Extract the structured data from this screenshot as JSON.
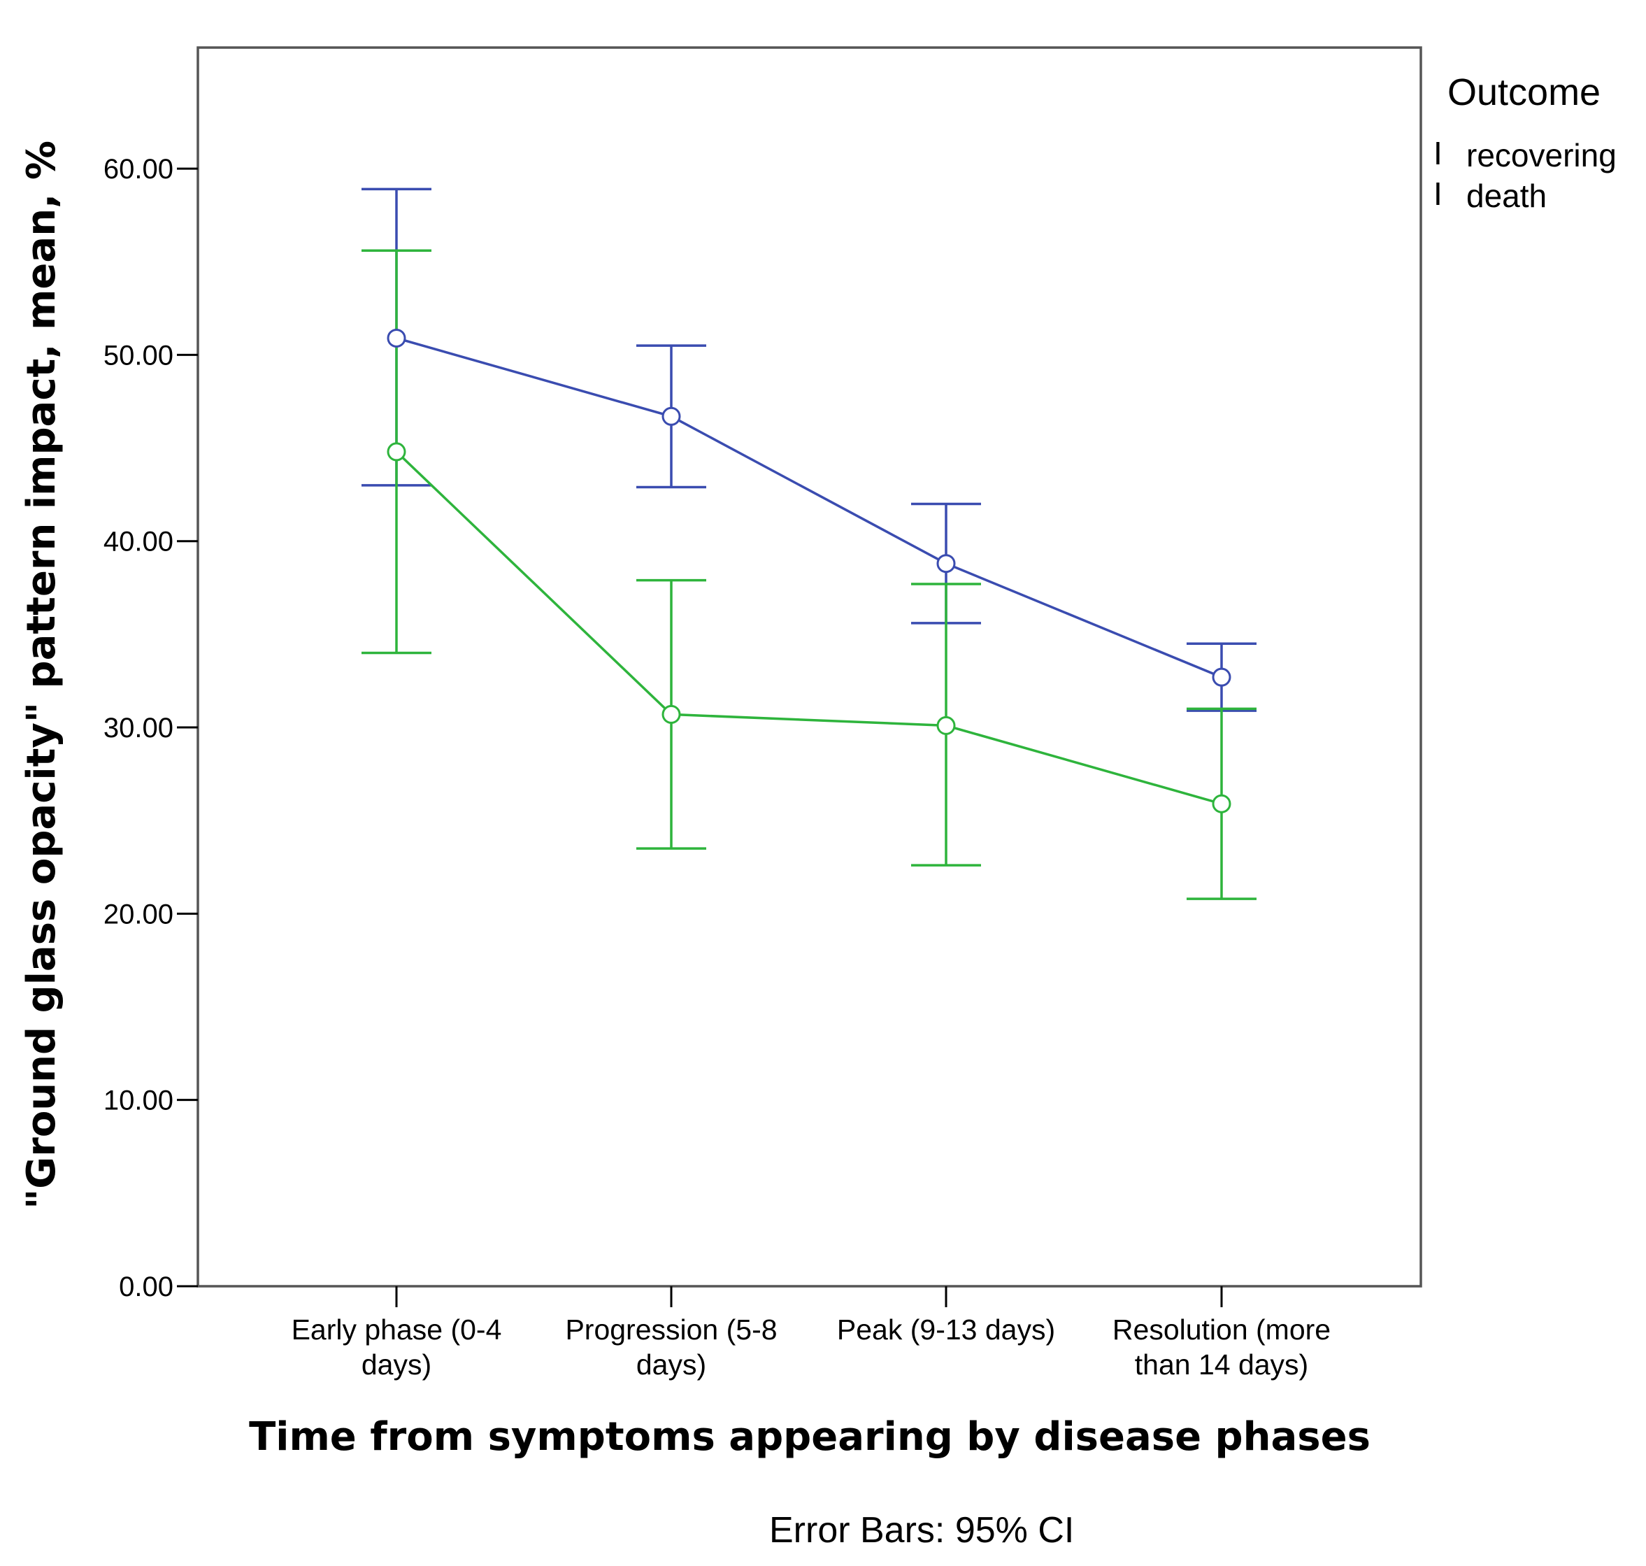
{
  "chart_data": {
    "type": "line",
    "xlabel": "Time from symptoms appearing by disease phases",
    "ylabel": "\"Ground glass opacity\" pattern impact, mean, %",
    "ylim": [
      0,
      66.5
    ],
    "yticks": [
      0,
      10,
      20,
      30,
      40,
      50,
      60
    ],
    "ytick_labels": [
      "0.00",
      "10.00",
      "20.00",
      "30.00",
      "40.00",
      "50.00",
      "60.00"
    ],
    "categories": [
      [
        "Early phase (0-4",
        "days)"
      ],
      [
        "Progression (5-8",
        "days)"
      ],
      [
        "Peak (9-13 days)"
      ],
      [
        "Resolution (more",
        "than 14 days)"
      ]
    ],
    "series": [
      {
        "name": "recovering",
        "color": "#3a4cb0",
        "values": [
          50.9,
          46.7,
          38.8,
          32.7
        ],
        "ci_low": [
          43.0,
          42.9,
          35.6,
          30.9
        ],
        "ci_high": [
          58.9,
          50.5,
          42.0,
          34.5
        ]
      },
      {
        "name": "death",
        "color": "#2eb43c",
        "values": [
          44.8,
          30.7,
          30.1,
          25.9
        ],
        "ci_low": [
          34.0,
          23.5,
          22.6,
          20.8
        ],
        "ci_high": [
          55.6,
          37.9,
          37.7,
          31.0
        ]
      }
    ],
    "legend_title": "Outcome",
    "legend_position": "top-right",
    "legend_marker": "I",
    "note": "Error Bars: 95% CI",
    "grid": false
  }
}
